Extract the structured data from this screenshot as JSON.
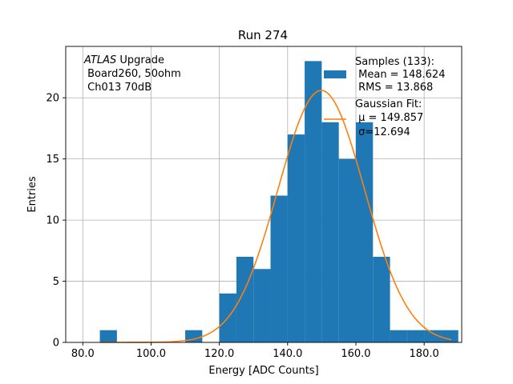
{
  "chart_data": {
    "type": "bar",
    "title": "Run 274",
    "xlabel": "Energy [ADC Counts]",
    "ylabel": "Entries",
    "xlim": [
      75,
      191
    ],
    "ylim": [
      0,
      24.2
    ],
    "x_ticks": [
      80,
      100,
      120,
      140,
      160,
      180
    ],
    "x_tick_labels": [
      "80.0",
      "100.0",
      "120.0",
      "140.0",
      "160.0",
      "180.0"
    ],
    "y_ticks": [
      0,
      5,
      10,
      15,
      20
    ],
    "y_tick_labels": [
      "0",
      "5",
      "10",
      "15",
      "20"
    ],
    "grid": true,
    "colors": {
      "bars": "#1f77b4",
      "fit": "#ff7f0e"
    },
    "annotation": {
      "italic": "ATLAS",
      "line1_rest": " Upgrade",
      "line2": " Board260, 50ohm",
      "line3": " Ch013 70dB"
    },
    "histogram": {
      "name_lines": [
        "Samples (133):",
        " Mean = 148.624",
        " RMS = 13.868"
      ],
      "bins": [
        {
          "left": 85,
          "right": 90,
          "count": 1
        },
        {
          "left": 110,
          "right": 115,
          "count": 1
        },
        {
          "left": 120,
          "right": 125,
          "count": 4
        },
        {
          "left": 125,
          "right": 130,
          "count": 7
        },
        {
          "left": 130,
          "right": 135,
          "count": 6
        },
        {
          "left": 135,
          "right": 140,
          "count": 12
        },
        {
          "left": 140,
          "right": 145,
          "count": 17
        },
        {
          "left": 145,
          "right": 150,
          "count": 23
        },
        {
          "left": 150,
          "right": 155,
          "count": 18
        },
        {
          "left": 155,
          "right": 160,
          "count": 15
        },
        {
          "left": 160,
          "right": 165,
          "count": 18
        },
        {
          "left": 165,
          "right": 170,
          "count": 7
        },
        {
          "left": 170,
          "right": 175,
          "count": 1
        },
        {
          "left": 175,
          "right": 180,
          "count": 1
        },
        {
          "left": 180,
          "right": 185,
          "count": 1
        },
        {
          "left": 185,
          "right": 190,
          "count": 1
        }
      ]
    },
    "fit": {
      "name_lines": [
        "Gaussian Fit:",
        " μ = 149.857",
        " σ=12.694"
      ],
      "mu": 149.857,
      "sigma": 12.694,
      "amplitude": 20.6,
      "x_range": [
        85,
        188
      ]
    },
    "legend_position": "upper right"
  }
}
